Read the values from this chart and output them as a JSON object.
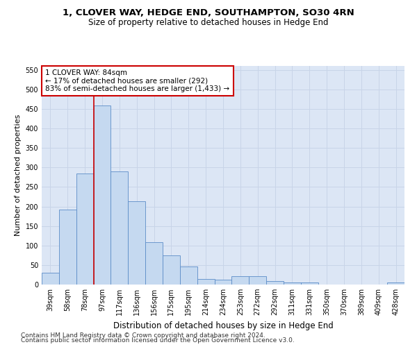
{
  "title": "1, CLOVER WAY, HEDGE END, SOUTHAMPTON, SO30 4RN",
  "subtitle": "Size of property relative to detached houses in Hedge End",
  "xlabel": "Distribution of detached houses by size in Hedge End",
  "ylabel": "Number of detached properties",
  "categories": [
    "39sqm",
    "58sqm",
    "78sqm",
    "97sqm",
    "117sqm",
    "136sqm",
    "156sqm",
    "175sqm",
    "195sqm",
    "214sqm",
    "234sqm",
    "253sqm",
    "272sqm",
    "292sqm",
    "311sqm",
    "331sqm",
    "350sqm",
    "370sqm",
    "389sqm",
    "409sqm",
    "428sqm"
  ],
  "values": [
    30,
    192,
    285,
    458,
    290,
    213,
    109,
    75,
    46,
    14,
    13,
    22,
    22,
    9,
    5,
    5,
    0,
    0,
    0,
    0,
    5
  ],
  "bar_color": "#c5d9f0",
  "bar_edge_color": "#5b8cc8",
  "vline_color": "#cc0000",
  "vline_x_index": 2.5,
  "annotation_text": "1 CLOVER WAY: 84sqm\n← 17% of detached houses are smaller (292)\n83% of semi-detached houses are larger (1,433) →",
  "annotation_box_color": "#ffffff",
  "annotation_box_edge_color": "#cc0000",
  "ylim": [
    0,
    560
  ],
  "yticks": [
    0,
    50,
    100,
    150,
    200,
    250,
    300,
    350,
    400,
    450,
    500,
    550
  ],
  "grid_color": "#c8d4e8",
  "background_color": "#dce6f5",
  "footer_line1": "Contains HM Land Registry data © Crown copyright and database right 2024.",
  "footer_line2": "Contains public sector information licensed under the Open Government Licence v3.0.",
  "title_fontsize": 9.5,
  "subtitle_fontsize": 8.5,
  "xlabel_fontsize": 8.5,
  "ylabel_fontsize": 8,
  "tick_fontsize": 7,
  "annotation_fontsize": 7.5,
  "footer_fontsize": 6.5
}
